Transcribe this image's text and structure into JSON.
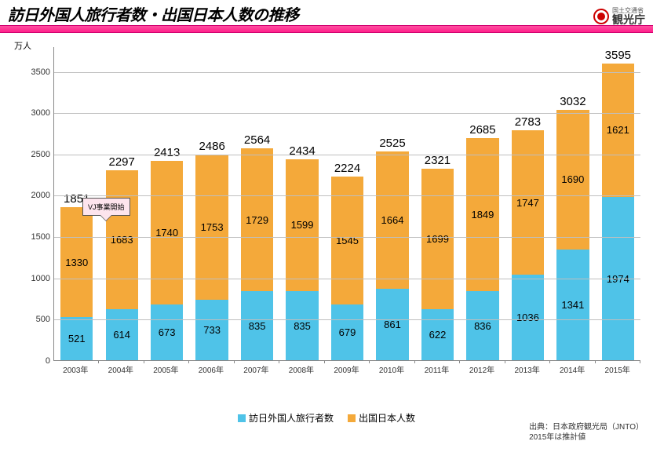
{
  "header": {
    "title": "訪日外国人旅行者数・出国日本人数の推移",
    "agency_sub": "国土交通省",
    "agency_main": "観光庁"
  },
  "chart": {
    "type": "stacked-bar",
    "y_unit_label": "万人",
    "ymax": 3800,
    "yticks": [
      0,
      500,
      1000,
      1500,
      2000,
      2500,
      3000,
      3500
    ],
    "categories": [
      "2003年",
      "2004年",
      "2005年",
      "2006年",
      "2007年",
      "2008年",
      "2009年",
      "2010年",
      "2011年",
      "2012年",
      "2013年",
      "2014年",
      "2015年"
    ],
    "series": [
      {
        "name": "訪日外国人旅行者数",
        "color": "#4fc3e8",
        "values": [
          521,
          614,
          673,
          733,
          835,
          835,
          679,
          861,
          622,
          836,
          1036,
          1341,
          1974
        ]
      },
      {
        "name": "出国日本人数",
        "color": "#f4a93a",
        "values": [
          1330,
          1683,
          1740,
          1753,
          1729,
          1599,
          1545,
          1664,
          1699,
          1849,
          1747,
          1690,
          1621
        ]
      }
    ],
    "totals": [
      1851,
      2297,
      2413,
      2486,
      2564,
      2434,
      2224,
      2525,
      2321,
      2685,
      2783,
      3032,
      3595
    ],
    "label_fontsize": 13,
    "total_fontsize": 15,
    "axis_color": "#888888",
    "grid_color": "#bfbfbf",
    "background": "#ffffff"
  },
  "callout": {
    "text": "VJ事業開始"
  },
  "footnote": {
    "line1": "出典：日本政府観光局（JNTO）",
    "line2": "2015年は推計値"
  }
}
